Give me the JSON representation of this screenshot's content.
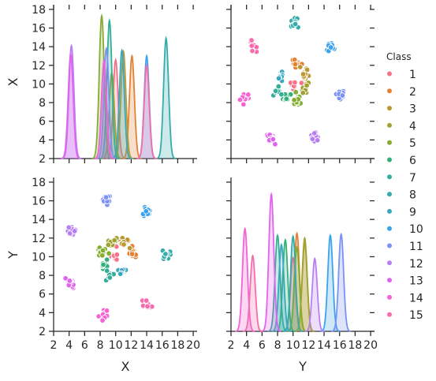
{
  "chart_data": {
    "type": "pairplot",
    "variables": [
      "X",
      "Y"
    ],
    "axis_labels": {
      "x": [
        "X",
        "Y"
      ],
      "y": [
        "X",
        "Y"
      ]
    },
    "xlim": [
      2,
      20.5
    ],
    "ylim": [
      2,
      18.5
    ],
    "ticks": [
      2,
      4,
      6,
      8,
      10,
      12,
      14,
      16,
      18,
      20
    ],
    "tick_labels": [
      "2",
      "4",
      "6",
      "8",
      "10",
      "12",
      "14",
      "16",
      "18",
      "20"
    ],
    "y_ticks": [
      2,
      4,
      6,
      8,
      10,
      12,
      14,
      16,
      18
    ],
    "y_tick_labels": [
      "2",
      "4",
      "6",
      "8",
      "10",
      "12",
      "14",
      "16",
      "18"
    ],
    "legend": {
      "title": "Class",
      "position": "right",
      "entries": [
        "1",
        "2",
        "3",
        "4",
        "5",
        "6",
        "7",
        "8",
        "9",
        "10",
        "11",
        "12",
        "13",
        "14",
        "15"
      ]
    },
    "colors": [
      "#f77189",
      "#e48132",
      "#bb9832",
      "#a2a233",
      "#84ad32",
      "#33b07a",
      "#35ae99",
      "#36abac",
      "#38a8c0",
      "#3ba3ec",
      "#7b91f4",
      "#b87ff4",
      "#e164ef",
      "#f563d4",
      "#f66cad"
    ],
    "series": [
      {
        "name": "1",
        "center": [
          10.0,
          10.0
        ],
        "kde_diag_x": {
          "peak_density": 12.6
        },
        "kde_diag_y": {
          "peak_density": 9.9
        }
      },
      {
        "name": "2",
        "center": [
          12.1,
          10.5
        ],
        "kde_diag_x": {
          "peak_density": 13.0
        },
        "kde_diag_y": {
          "peak_density": 12.5
        }
      },
      {
        "name": "3",
        "center": [
          11.0,
          11.5
        ],
        "kde_diag_x": {
          "peak_density": 13.5
        },
        "kde_diag_y": {
          "peak_density": 11.5
        }
      },
      {
        "name": "4",
        "center": [
          9.5,
          11.5
        ],
        "kde_diag_x": {
          "peak_density": 11.2
        },
        "kde_diag_y": {
          "peak_density": 12.0
        }
      },
      {
        "name": "5",
        "center": [
          8.2,
          10.5
        ],
        "kde_diag_x": {
          "peak_density": 17.3
        },
        "kde_diag_y": {
          "peak_density": 11.0
        }
      },
      {
        "name": "6",
        "center": [
          8.5,
          9.0
        ],
        "kde_diag_x": {
          "peak_density": 12.5
        },
        "kde_diag_y": {
          "peak_density": 11.8
        }
      },
      {
        "name": "7",
        "center": [
          9.2,
          8.0
        ],
        "kde_diag_x": {
          "peak_density": 16.8
        },
        "kde_diag_y": {
          "peak_density": 12.3
        }
      },
      {
        "name": "8",
        "center": [
          16.5,
          10.0
        ],
        "kde_diag_x": {
          "peak_density": 14.9
        },
        "kde_diag_y": {
          "peak_density": 12.2
        }
      },
      {
        "name": "9",
        "center": [
          10.8,
          8.5
        ],
        "kde_diag_x": {
          "peak_density": 13.6
        },
        "kde_diag_y": {
          "peak_density": 11.3
        }
      },
      {
        "name": "10",
        "center": [
          14.0,
          14.8
        ],
        "kde_diag_x": {
          "peak_density": 13.0
        },
        "kde_diag_y": {
          "peak_density": 12.3
        }
      },
      {
        "name": "11",
        "center": [
          8.8,
          16.2
        ],
        "kde_diag_x": {
          "peak_density": 13.8
        },
        "kde_diag_y": {
          "peak_density": 12.4
        }
      },
      {
        "name": "12",
        "center": [
          4.3,
          12.8
        ],
        "kde_diag_x": {
          "peak_density": 14.1
        },
        "kde_diag_y": {
          "peak_density": 9.8
        }
      },
      {
        "name": "13",
        "center": [
          4.2,
          7.2
        ],
        "kde_diag_x": {
          "peak_density": 13.2
        },
        "kde_diag_y": {
          "peak_density": 16.7
        }
      },
      {
        "name": "14",
        "center": [
          8.5,
          3.8
        ],
        "kde_diag_x": {
          "peak_density": 12.5
        },
        "kde_diag_y": {
          "peak_density": 13.0
        }
      },
      {
        "name": "15",
        "center": [
          14.0,
          4.8
        ],
        "kde_diag_x": {
          "peak_density": 12.0
        },
        "kde_diag_y": {
          "peak_density": 10.1
        }
      }
    ]
  }
}
